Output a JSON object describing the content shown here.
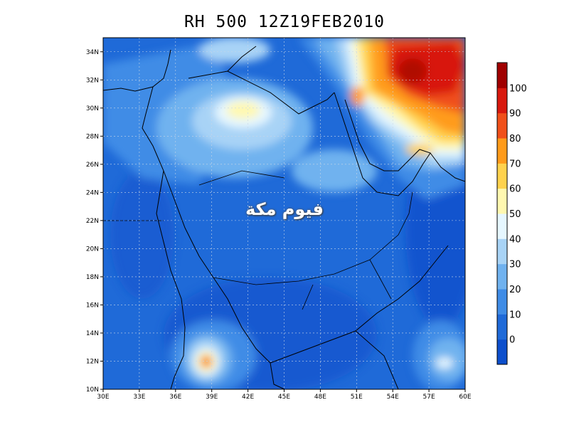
{
  "map": {
    "title": "RH 500  12Z19FEB2010",
    "watermark": "فيوم مكة",
    "lat_ticks": [
      "10N",
      "12N",
      "14N",
      "16N",
      "18N",
      "20N",
      "22N",
      "24N",
      "26N",
      "28N",
      "30N",
      "32N",
      "34N"
    ],
    "lon_ticks": [
      "30E",
      "33E",
      "36E",
      "39E",
      "42E",
      "45E",
      "48E",
      "51E",
      "54E",
      "57E",
      "60E"
    ],
    "lat_range": [
      10,
      35
    ],
    "lon_range": [
      30,
      60
    ]
  },
  "colorbar": {
    "labels": [
      "0",
      "10",
      "20",
      "30",
      "40",
      "50",
      "60",
      "70",
      "80",
      "90",
      "100"
    ],
    "colors": [
      "#0d4fcc",
      "#1f6ad8",
      "#3f8ce6",
      "#70b2ef",
      "#a8d3f6",
      "#e6f7ff",
      "#fff8b0",
      "#ffd24d",
      "#ff9b1a",
      "#f0501a",
      "#d8190e",
      "#a00000"
    ]
  },
  "chart_data": {
    "type": "heatmap",
    "title": "RH 500  12Z19FEB2010",
    "variable": "RH 500",
    "units": "%",
    "x_axis": "longitude",
    "y_axis": "latitude",
    "xlim": [
      30,
      60
    ],
    "ylim": [
      10,
      35
    ],
    "levels": [
      0,
      10,
      20,
      30,
      40,
      50,
      60,
      70,
      80,
      90,
      100
    ],
    "features": [
      {
        "lon": 55.5,
        "lat": 31.5,
        "value": 100
      },
      {
        "lon": 57.5,
        "lat": 30.5,
        "value": 90
      },
      {
        "lon": 51.5,
        "lat": 30.5,
        "value": 80
      },
      {
        "lon": 55.5,
        "lat": 27.0,
        "value": 70
      },
      {
        "lon": 38.5,
        "lat": 12.0,
        "value": 90
      },
      {
        "lon": 42.0,
        "lat": 30.0,
        "value": 60
      },
      {
        "lon": 40.0,
        "lat": 34.0,
        "value": 50
      },
      {
        "lon": 58.0,
        "lat": 12.0,
        "value": 50
      },
      {
        "lon": 58.5,
        "lat": 20.5,
        "value": 0
      },
      {
        "lon": 35.0,
        "lat": 20.0,
        "value": 10
      }
    ]
  }
}
